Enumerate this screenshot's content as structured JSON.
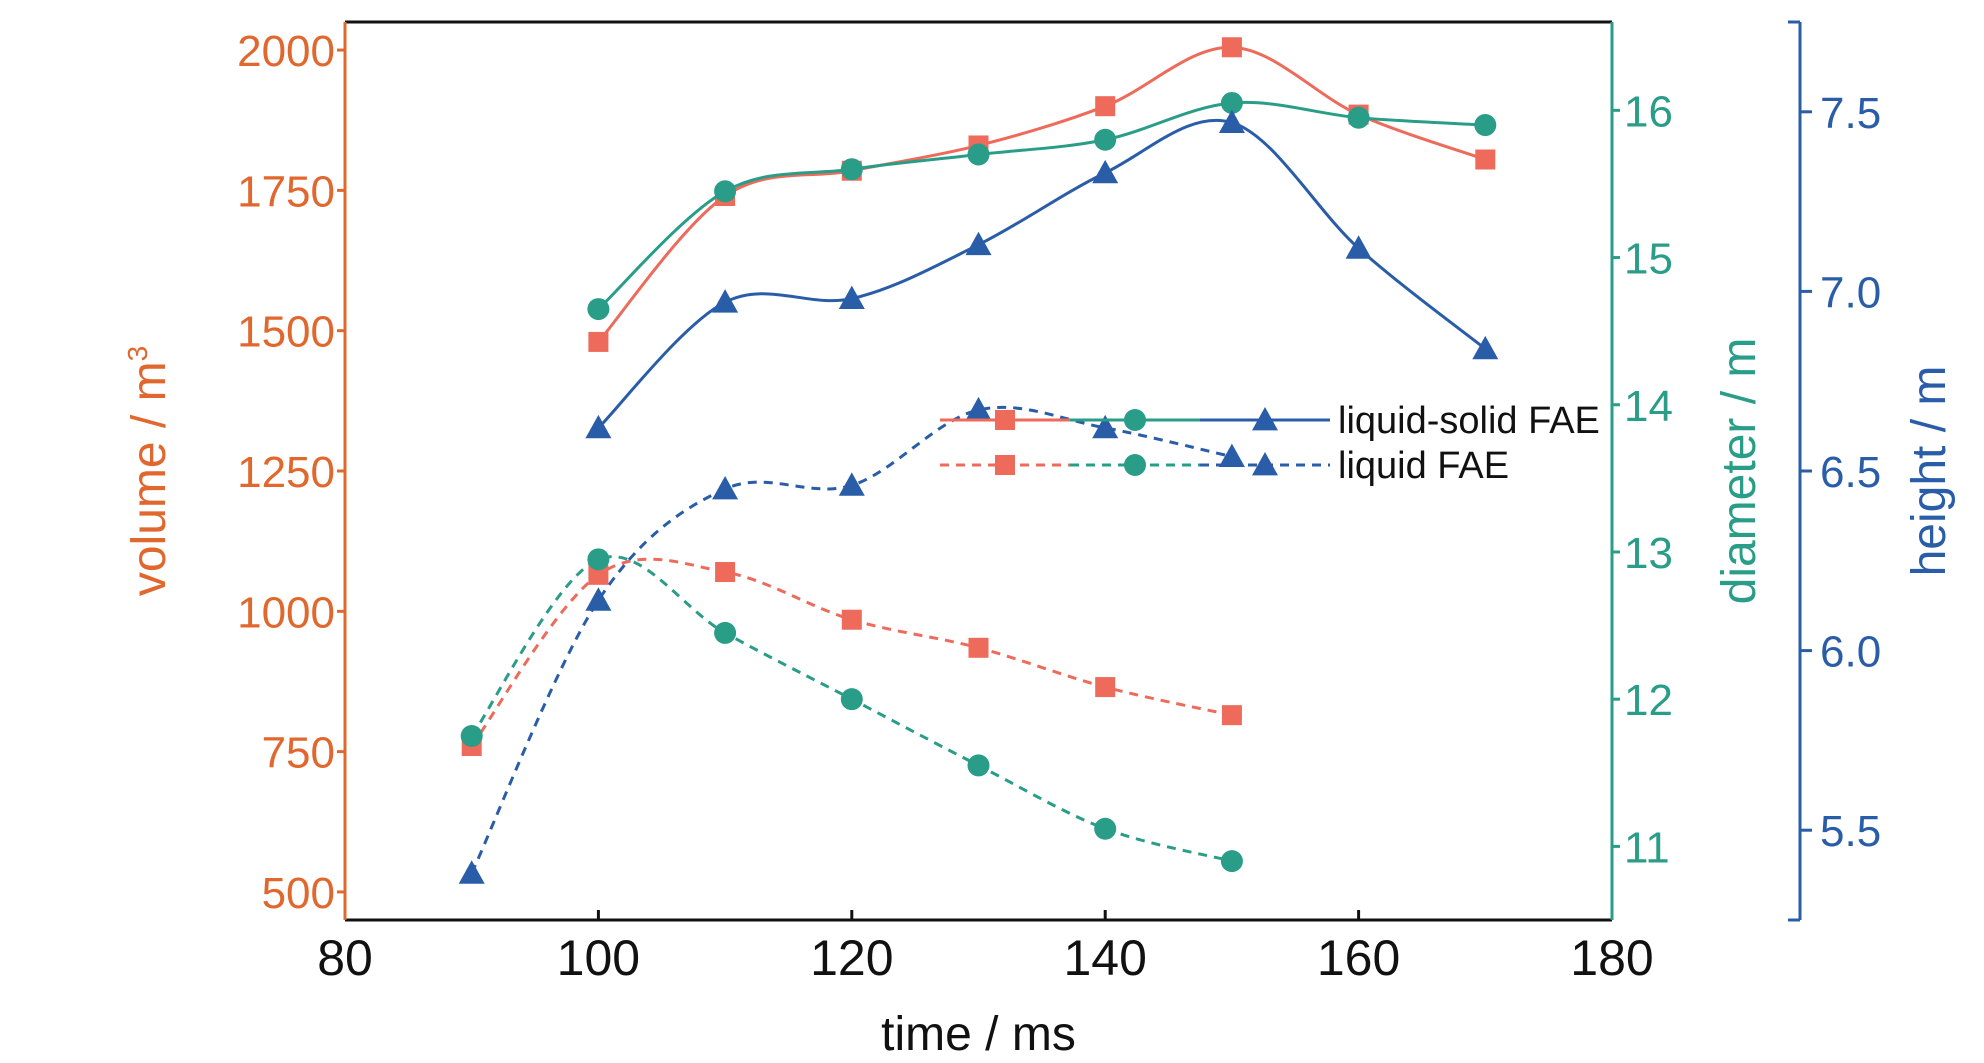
{
  "chart_data": {
    "type": "line",
    "title": "",
    "xlabel": "time / ms",
    "x_range": [
      80,
      180
    ],
    "x_ticks": [
      "80",
      "100",
      "120",
      "140",
      "160",
      "180"
    ],
    "grid": false,
    "legend_position": "center-right",
    "legend_entries": [
      "liquid-solid FAE",
      "liquid FAE"
    ],
    "axes": [
      {
        "id": "volume",
        "label_text": "volume / m",
        "label_superscript": "3",
        "side": "left",
        "range": [
          450,
          2050
        ],
        "ticks": [
          "500",
          "750",
          "1000",
          "1250",
          "1500",
          "1750",
          "2000"
        ],
        "color": "#e0682e"
      },
      {
        "id": "diameter",
        "label": "diameter / m",
        "side": "right",
        "range": [
          10.5,
          16.6
        ],
        "ticks": [
          "11",
          "12",
          "13",
          "14",
          "15",
          "16"
        ],
        "color": "#2a9d88"
      },
      {
        "id": "height",
        "label": "height / m",
        "side": "right-outer",
        "range": [
          5.25,
          7.75
        ],
        "ticks": [
          "5.5",
          "6.0",
          "6.5",
          "7.0",
          "7.5"
        ],
        "color": "#2a5da8"
      }
    ],
    "series": [
      {
        "name": "liquid-solid FAE",
        "legend_index": 0,
        "axis": "volume",
        "style": "solid",
        "marker": "square",
        "color": "#ee6a5a",
        "x": [
          100,
          110,
          120,
          130,
          140,
          150,
          160,
          170
        ],
        "values": [
          1480,
          1740,
          1785,
          1830,
          1900,
          2005,
          1885,
          1805
        ]
      },
      {
        "name": "liquid-solid FAE",
        "legend_index": 0,
        "axis": "diameter",
        "style": "solid",
        "marker": "circle",
        "color": "#2a9d88",
        "x": [
          100,
          110,
          120,
          130,
          140,
          150,
          160,
          170
        ],
        "values": [
          14.65,
          15.45,
          15.6,
          15.7,
          15.8,
          16.05,
          15.95,
          15.9
        ]
      },
      {
        "name": "liquid-solid FAE",
        "legend_index": 0,
        "axis": "height",
        "style": "solid",
        "marker": "triangle",
        "color": "#2a5da8",
        "x": [
          100,
          110,
          120,
          130,
          140,
          150,
          160,
          170
        ],
        "values": [
          6.62,
          6.97,
          6.98,
          7.13,
          7.33,
          7.47,
          7.12,
          6.84
        ]
      },
      {
        "name": "liquid FAE",
        "legend_index": 1,
        "axis": "volume",
        "style": "dashed",
        "marker": "square",
        "color": "#ee6a5a",
        "x": [
          90,
          100,
          110,
          120,
          130,
          140,
          150
        ],
        "values": [
          760,
          1065,
          1070,
          985,
          935,
          865,
          815
        ]
      },
      {
        "name": "liquid FAE",
        "legend_index": 1,
        "axis": "diameter",
        "style": "dashed",
        "marker": "circle",
        "color": "#2a9d88",
        "x": [
          90,
          100,
          110,
          120,
          130,
          140,
          150
        ],
        "values": [
          11.75,
          12.95,
          12.45,
          12.0,
          11.55,
          11.12,
          10.9
        ]
      },
      {
        "name": "liquid FAE",
        "legend_index": 1,
        "axis": "height",
        "style": "dashed",
        "marker": "triangle",
        "color": "#2a5da8",
        "x": [
          90,
          100,
          110,
          120,
          130,
          140,
          150
        ],
        "values": [
          5.38,
          6.14,
          6.45,
          6.46,
          6.67,
          6.62,
          6.54
        ]
      }
    ]
  }
}
